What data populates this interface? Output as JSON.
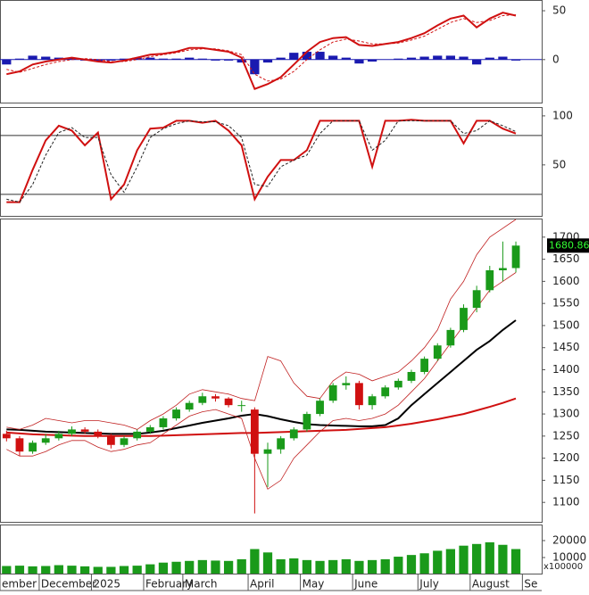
{
  "chart_data": [
    {
      "type": "line",
      "ylim": [
        -44,
        61
      ],
      "yticks": [
        50,
        0
      ],
      "series": [
        {
          "color": "#d01010",
          "values": [
            -15,
            -12,
            -5,
            -2,
            0,
            2,
            0,
            -2,
            -3,
            -1,
            2,
            5,
            6,
            8,
            12,
            12,
            10,
            8,
            2,
            -30,
            -25,
            -18,
            -5,
            8,
            18,
            22,
            23,
            15,
            14,
            16,
            18,
            22,
            27,
            35,
            42,
            45,
            33,
            42,
            48,
            45
          ]
        },
        {
          "color": "#d01010",
          "dash": true,
          "values": [
            -10,
            -13,
            -9,
            -5,
            -2,
            0,
            1,
            0,
            -2,
            -2,
            0,
            3,
            5,
            7,
            10,
            11,
            11,
            9,
            5,
            -15,
            -22,
            -20,
            -12,
            0,
            10,
            18,
            21,
            19,
            16,
            16,
            17,
            20,
            24,
            31,
            38,
            42,
            38,
            40,
            45,
            46
          ]
        }
      ],
      "histogram": {
        "color": "#1a1ab0",
        "values": [
          -5,
          1,
          4,
          3,
          2,
          2,
          -1,
          -2,
          -1,
          1,
          2,
          2,
          1,
          1,
          2,
          1,
          -1,
          -1,
          -3,
          -15,
          -3,
          2,
          7,
          8,
          8,
          4,
          2,
          -4,
          -2,
          0,
          1,
          2,
          3,
          4,
          4,
          3,
          -5,
          2,
          3,
          -1
        ]
      }
    },
    {
      "type": "line",
      "ylim": [
        -2,
        109
      ],
      "yticks": [
        100,
        50
      ],
      "levels": [
        80,
        20
      ],
      "series": [
        {
          "color": "#d01010",
          "values": [
            12,
            12,
            45,
            75,
            90,
            85,
            70,
            83,
            15,
            30,
            65,
            87,
            88,
            95,
            95,
            93,
            95,
            85,
            70,
            15,
            38,
            55,
            55,
            65,
            95,
            95,
            95,
            95,
            48,
            95,
            95,
            96,
            95,
            95,
            95,
            72,
            95,
            95,
            87,
            82
          ]
        },
        {
          "color": "#222222",
          "dash": true,
          "values": [
            15,
            12,
            30,
            60,
            83,
            88,
            78,
            78,
            40,
            22,
            48,
            78,
            87,
            92,
            95,
            94,
            94,
            90,
            78,
            30,
            28,
            48,
            55,
            60,
            82,
            95,
            95,
            95,
            65,
            75,
            95,
            95,
            95,
            95,
            95,
            82,
            85,
            95,
            90,
            84
          ]
        }
      ]
    },
    {
      "type": "candlestick",
      "ylim": [
        1056,
        1742
      ],
      "yticks": [
        1100,
        1150,
        1200,
        1250,
        1300,
        1350,
        1400,
        1450,
        1500,
        1550,
        1600,
        1650,
        1700
      ],
      "up_color": "#1a9a1a",
      "down_color": "#d01010",
      "open": [
        1255,
        1245,
        1215,
        1235,
        1245,
        1255,
        1265,
        1260,
        1250,
        1230,
        1245,
        1260,
        1270,
        1290,
        1310,
        1325,
        1340,
        1335,
        1320,
        1310,
        1210,
        1220,
        1245,
        1265,
        1300,
        1330,
        1365,
        1370,
        1320,
        1340,
        1360,
        1375,
        1395,
        1425,
        1455,
        1490,
        1540,
        1580,
        1625,
        1630
      ],
      "high": [
        1262,
        1250,
        1240,
        1255,
        1262,
        1272,
        1270,
        1265,
        1255,
        1250,
        1265,
        1275,
        1295,
        1315,
        1330,
        1348,
        1345,
        1338,
        1330,
        1315,
        1235,
        1250,
        1270,
        1305,
        1335,
        1370,
        1385,
        1375,
        1345,
        1365,
        1380,
        1400,
        1430,
        1460,
        1495,
        1548,
        1590,
        1635,
        1690,
        1690
      ],
      "low": [
        1238,
        1205,
        1210,
        1230,
        1240,
        1250,
        1255,
        1245,
        1222,
        1225,
        1240,
        1255,
        1265,
        1285,
        1305,
        1320,
        1328,
        1315,
        1305,
        1075,
        1135,
        1210,
        1240,
        1260,
        1295,
        1325,
        1355,
        1310,
        1310,
        1335,
        1355,
        1370,
        1390,
        1420,
        1450,
        1485,
        1530,
        1575,
        1600,
        1620
      ],
      "close": [
        1245,
        1215,
        1235,
        1245,
        1255,
        1265,
        1260,
        1250,
        1230,
        1245,
        1260,
        1270,
        1290,
        1310,
        1325,
        1340,
        1335,
        1320,
        1320,
        1210,
        1220,
        1245,
        1265,
        1300,
        1330,
        1365,
        1370,
        1320,
        1340,
        1360,
        1375,
        1395,
        1425,
        1455,
        1490,
        1540,
        1580,
        1625,
        1630,
        1680.86
      ],
      "series": [
        {
          "color": "#000000",
          "width": 2,
          "values": [
            1265,
            1264,
            1262,
            1260,
            1259,
            1258,
            1257,
            1256,
            1255,
            1255,
            1255,
            1258,
            1262,
            1268,
            1274,
            1280,
            1285,
            1290,
            1296,
            1300,
            1295,
            1288,
            1282,
            1277,
            1275,
            1274,
            1273,
            1272,
            1272,
            1275,
            1290,
            1320,
            1345,
            1370,
            1395,
            1420,
            1445,
            1465,
            1490,
            1512
          ]
        },
        {
          "color": "#d01010",
          "width": 2,
          "values": [
            1258,
            1256,
            1254,
            1253,
            1252,
            1251,
            1250,
            1250,
            1250,
            1250,
            1250,
            1250,
            1251,
            1252,
            1253,
            1254,
            1255,
            1256,
            1257,
            1257,
            1258,
            1259,
            1260,
            1261,
            1262,
            1263,
            1264,
            1266,
            1268,
            1270,
            1274,
            1278,
            1283,
            1288,
            1294,
            1300,
            1308,
            1316,
            1325,
            1335
          ]
        },
        {
          "color": "#c02020",
          "width": 0.8,
          "values": [
            1270,
            1265,
            1275,
            1290,
            1285,
            1280,
            1285,
            1285,
            1280,
            1275,
            1265,
            1285,
            1300,
            1320,
            1345,
            1355,
            1350,
            1345,
            1335,
            1330,
            1430,
            1420,
            1370,
            1340,
            1335,
            1375,
            1395,
            1390,
            1375,
            1385,
            1395,
            1420,
            1450,
            1490,
            1560,
            1600,
            1660,
            1700,
            1720,
            1740
          ]
        },
        {
          "color": "#c02020",
          "width": 0.8,
          "values": [
            1220,
            1205,
            1205,
            1215,
            1230,
            1240,
            1240,
            1225,
            1215,
            1220,
            1230,
            1235,
            1255,
            1275,
            1295,
            1305,
            1310,
            1300,
            1290,
            1200,
            1130,
            1150,
            1200,
            1230,
            1260,
            1285,
            1290,
            1285,
            1290,
            1300,
            1320,
            1350,
            1380,
            1420,
            1460,
            1500,
            1540,
            1580,
            1600,
            1620
          ]
        }
      ],
      "last_price": {
        "value": 1680.86,
        "label": "1680.860"
      }
    },
    {
      "type": "bar",
      "ylim": [
        526,
        29474
      ],
      "yticks": [
        20000,
        10000
      ],
      "unit_label": "x100000",
      "color": "#1a9a1a",
      "categories": [
        "ember",
        null,
        null,
        "December",
        null,
        null,
        null,
        "2025",
        null,
        null,
        null,
        "February",
        null,
        null,
        "March",
        null,
        null,
        null,
        null,
        "April",
        null,
        null,
        null,
        "May",
        null,
        null,
        null,
        "June",
        null,
        null,
        null,
        null,
        "July",
        null,
        null,
        null,
        "August",
        null,
        null,
        null,
        "Se"
      ],
      "values": [
        5000,
        5200,
        4800,
        5000,
        5500,
        5200,
        4800,
        4500,
        4500,
        5000,
        5200,
        6000,
        7000,
        7500,
        8000,
        8500,
        8200,
        8000,
        9000,
        15000,
        13000,
        9000,
        9500,
        8500,
        8000,
        8500,
        9000,
        8000,
        8500,
        9000,
        10500,
        11500,
        12500,
        14000,
        15000,
        17000,
        18000,
        19000,
        17500,
        15000,
        null
      ]
    }
  ]
}
